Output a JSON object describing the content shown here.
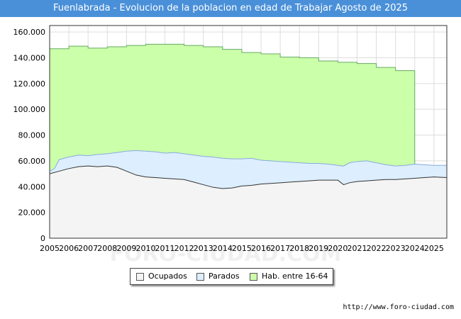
{
  "page": {
    "title": "Fuenlabrada - Evolucion de la poblacion en edad de Trabajar Agosto de 2025",
    "source": "http://www.foro-ciudad.com",
    "watermark": "FORO-CIUDAD.COM"
  },
  "colors": {
    "title_bg": "#4a90d9",
    "hab_fill": "#ccffaa",
    "hab_line": "#66aa66",
    "parados_fill": "#ddeeff",
    "parados_line": "#88aadd",
    "ocupados_fill": "#f4f4f4",
    "ocupados_line": "#333333"
  },
  "chart_data": {
    "type": "area",
    "title": "Fuenlabrada - Evolucion de la poblacion en edad de Trabajar Agosto de 2025",
    "xlabel": "",
    "ylabel": "",
    "xlim": [
      2005,
      2025.67
    ],
    "ylim": [
      0,
      165000
    ],
    "grid": true,
    "y_ticks": [
      0,
      20000,
      40000,
      60000,
      80000,
      100000,
      120000,
      140000,
      160000
    ],
    "y_tick_labels": [
      "0",
      "20.000",
      "40.000",
      "60.000",
      "80.000",
      "100.000",
      "120.000",
      "140.000",
      "160.000"
    ],
    "x_ticks": [
      2005,
      2006,
      2007,
      2008,
      2009,
      2010,
      2011,
      2012,
      2013,
      2014,
      2015,
      2016,
      2017,
      2018,
      2019,
      2020,
      2021,
      2022,
      2023,
      2024,
      2025
    ],
    "x_tick_labels": [
      "2005",
      "2006",
      "2007",
      "2008",
      "2009",
      "2010",
      "2011",
      "2012",
      "2013",
      "2014",
      "2015",
      "2016",
      "2017",
      "2018",
      "2019",
      "2020",
      "2021",
      "2022",
      "2023",
      "2024",
      "2025"
    ],
    "legend_position": "bottom",
    "series": [
      {
        "name": "Hab. entre 16-64",
        "type": "step",
        "x": [
          2005,
          2006,
          2007,
          2008,
          2009,
          2010,
          2011,
          2012,
          2013,
          2014,
          2015,
          2016,
          2017,
          2018,
          2019,
          2020,
          2021,
          2022,
          2023
        ],
        "values": [
          147000,
          149000,
          147500,
          148500,
          149500,
          150500,
          150500,
          149500,
          148500,
          146500,
          144000,
          143000,
          140500,
          140000,
          137500,
          136500,
          135500,
          132500,
          130000
        ],
        "x_end": 2024
      },
      {
        "name": "Parados",
        "x": [
          2005,
          2005.25,
          2005.5,
          2006,
          2006.5,
          2007,
          2007.5,
          2008,
          2008.5,
          2009,
          2009.5,
          2010,
          2010.5,
          2011,
          2011.5,
          2012,
          2012.5,
          2013,
          2013.5,
          2014,
          2014.5,
          2015,
          2015.5,
          2016,
          2016.5,
          2017,
          2017.5,
          2018,
          2018.5,
          2019,
          2019.5,
          2020,
          2020.3,
          2020.6,
          2021,
          2021.5,
          2022,
          2022.5,
          2023,
          2023.5,
          2024,
          2024.5,
          2025,
          2025.67
        ],
        "values": [
          52000,
          54000,
          61000,
          63000,
          64500,
          64000,
          65000,
          65500,
          66500,
          67500,
          68000,
          67500,
          67000,
          66000,
          66500,
          65500,
          64500,
          63500,
          63000,
          62000,
          61500,
          61500,
          62000,
          60500,
          60000,
          59500,
          59000,
          58500,
          58000,
          58000,
          57500,
          56500,
          56000,
          58500,
          59500,
          60000,
          58500,
          57000,
          56000,
          56500,
          57500,
          57000,
          56500,
          56500
        ]
      },
      {
        "name": "Ocupados",
        "x": [
          2005,
          2005.5,
          2006,
          2006.5,
          2007,
          2007.5,
          2008,
          2008.5,
          2009,
          2009.5,
          2010,
          2010.5,
          2011,
          2011.5,
          2012,
          2012.5,
          2013,
          2013.5,
          2014,
          2014.5,
          2015,
          2015.5,
          2016,
          2016.5,
          2017,
          2017.5,
          2018,
          2018.5,
          2019,
          2019.5,
          2020,
          2020.3,
          2020.6,
          2021,
          2021.5,
          2022,
          2022.5,
          2023,
          2023.5,
          2024,
          2024.5,
          2025,
          2025.67
        ],
        "values": [
          50000,
          52000,
          54000,
          55500,
          56000,
          55500,
          56000,
          55000,
          52000,
          49000,
          47500,
          47000,
          46500,
          46000,
          45500,
          43500,
          41500,
          39500,
          38500,
          39000,
          40500,
          41000,
          42000,
          42500,
          43000,
          43500,
          44000,
          44500,
          45000,
          45000,
          45000,
          41500,
          43000,
          44000,
          44500,
          45000,
          45500,
          45500,
          46000,
          46500,
          47000,
          47500,
          47000
        ]
      }
    ]
  },
  "legend": {
    "items": [
      {
        "label": "Ocupados",
        "color": "#f4f4f4"
      },
      {
        "label": "Parados",
        "color": "#ddeeff"
      },
      {
        "label": "Hab. entre 16-64",
        "color": "#ccffaa"
      }
    ]
  }
}
